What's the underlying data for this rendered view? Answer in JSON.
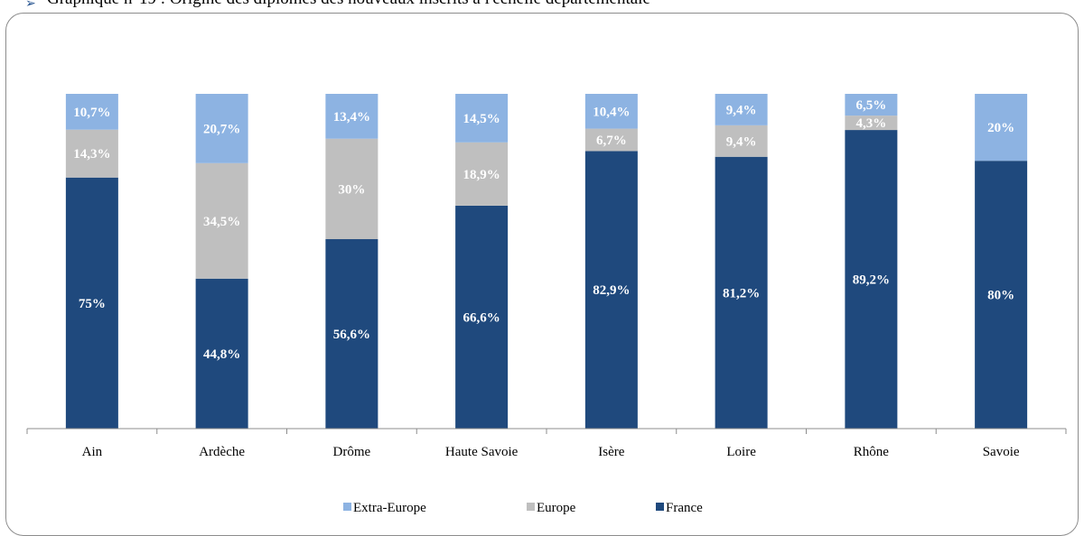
{
  "caption": "Graphique n°19 : Origine des diplômes des nouveaux inscrits à l'échelle départementale",
  "colors": {
    "extra_europe": "#8db3e2",
    "europe": "#bfbfbf",
    "france": "#1f497d"
  },
  "chart_data": {
    "type": "bar",
    "stacked": true,
    "percent_stacked": true,
    "categories": [
      "Ain",
      "Ardèche",
      "Drôme",
      "Haute Savoie",
      "Isère",
      "Loire",
      "Rhône",
      "Savoie"
    ],
    "series": [
      {
        "name": "France",
        "values": [
          75,
          44.8,
          56.6,
          66.6,
          82.9,
          81.2,
          89.2,
          80
        ],
        "labels": [
          "75%",
          "44,8%",
          "56,6%",
          "66,6%",
          "82,9%",
          "81,2%",
          "89,2%",
          "80%"
        ]
      },
      {
        "name": "Europe",
        "values": [
          14.3,
          34.5,
          30,
          18.9,
          6.7,
          9.4,
          4.3,
          0
        ],
        "labels": [
          "14,3%",
          "34,5%",
          "30%",
          "18,9%",
          "6,7%",
          "9,4%",
          "4,3%",
          ""
        ]
      },
      {
        "name": "Extra-Europe",
        "values": [
          10.7,
          20.7,
          13.4,
          14.5,
          10.4,
          9.4,
          6.5,
          20
        ],
        "labels": [
          "10,7%",
          "20,7%",
          "13,4%",
          "14,5%",
          "10,4%",
          "9,4%",
          "6,5%",
          "20%"
        ]
      }
    ],
    "legend_order": [
      "Extra-Europe",
      "Europe",
      "France"
    ],
    "legend_position": "bottom",
    "ylim": [
      0,
      100
    ],
    "grid": false
  }
}
